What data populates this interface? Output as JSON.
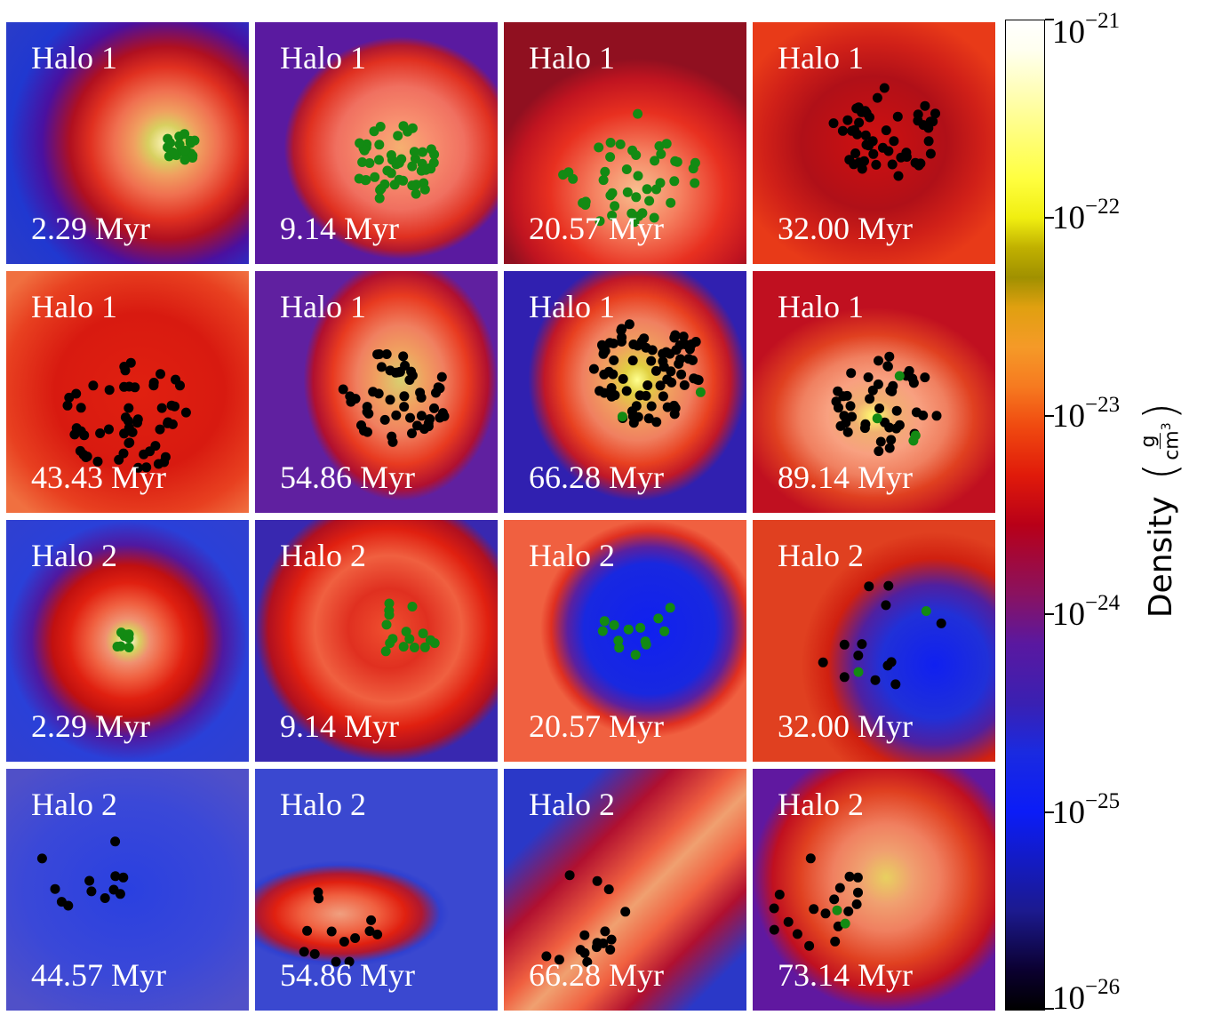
{
  "panels": [
    {
      "halo": "Halo 1",
      "time": "2.29 Myr",
      "bg": "radial-gradient(circle at 66% 50%,#fff7c0 0%,#d8d060 9%,#f0a060 16%,#f07050 26%,#e03020 38%,#b01020 48%,#4a10a0 62%,#2038d0 78%,#2a3cc8 100%)",
      "green": 20,
      "black": 0
    },
    {
      "halo": "Halo 1",
      "time": "9.14 Myr",
      "bg": "radial-gradient(ellipse 48% 46% at 60% 52%,#f5b070 0%,#f89070 25%,#f07060 55%,#e03020 80%,#b01830 92%,#5a1aa0 100%)",
      "green": 50,
      "black": 0
    },
    {
      "halo": "Halo 1",
      "time": "20.57 Myr",
      "bg": "radial-gradient(ellipse 60% 55% at 55% 70%,#f8c090 0%,#f58060 30%,#e83020 60%,#c01420 85%,#901020 100%)",
      "green": 44,
      "black": 0
    },
    {
      "halo": "Halo 1",
      "time": "32.00 Myr",
      "bg": "radial-gradient(ellipse 60% 55% at 50% 50%,#d01010 0%,#b01018 50%,#d02018 75%,#e83a18 100%)",
      "green": 0,
      "black": 50
    },
    {
      "halo": "Halo 1",
      "time": "43.43 Myr",
      "bg": "radial-gradient(ellipse 70% 65% at 55% 50%,#e02010 0%,#d81a10 50%,#e84020 80%,#f07040 100%)",
      "green": 0,
      "black": 56
    },
    {
      "halo": "Halo 1",
      "time": "54.86 Myr",
      "bg": "radial-gradient(ellipse 40% 50% at 60% 45%,#d8d070 0%,#f0a060 25%,#f08060 45%,#e83a20 70%,#b01030 90%,#6020a0 100%)",
      "green": 0,
      "black": 50
    },
    {
      "halo": "Halo 1",
      "time": "66.28 Myr",
      "bg": "radial-gradient(ellipse 45% 50% at 55% 45%,#ffff90 0%,#e0d040 12%,#f0a060 30%,#f08060 50%,#e84020 70%,#c01828 85%,#3020b0 100%)",
      "green": 2,
      "black": 80
    },
    {
      "halo": "Halo 1",
      "time": "89.14 Myr",
      "bg": "radial-gradient(ellipse 55% 45% at 50% 60%,#ffff70 0%,#f0b070 15%,#f8a080 35%,#f08060 55%,#e04020 75%,#c01020 100%)",
      "green": 4,
      "black": 44
    },
    {
      "halo": "Halo 2",
      "time": "2.29 Myr",
      "bg": "radial-gradient(circle at 50% 50%,#fffff0 0%,#d8d060 7%,#f09070 13%,#f06040 22%,#e02010 34%,#c01010 44%,#5018a0 56%,#2a40d8 70%,#3040d0 100%)",
      "green": 8,
      "black": 0
    },
    {
      "halo": "Halo 2",
      "time": "9.14 Myr",
      "bg": "radial-gradient(ellipse 55% 55% at 55% 45%,#f05030 0%,#e03020 30%,#f06040 55%,#e02010 75%,#b01020 90%,#3828b0 100%)",
      "green": 16,
      "black": 0
    },
    {
      "halo": "Halo 2",
      "time": "20.57 Myr",
      "bg": "radial-gradient(ellipse 45% 45% at 60% 45%,#1020f0 0%,#1828e0 60%,#5a20a0 75%,#e03020 90%,#f06040 100%)",
      "green": 13,
      "black": 0
    },
    {
      "halo": "Halo 2",
      "time": "32.00 Myr",
      "bg": "radial-gradient(ellipse 55% 55% at 75% 60%,#1020f0 0%,#2030d8 40%,#5020a0 60%,#d02010 80%,#e04020 100%)",
      "green": 2,
      "black": 13
    },
    {
      "halo": "Halo 2",
      "time": "44.57 Myr",
      "bg": "radial-gradient(ellipse 70% 60% at 50% 50%,#2a40e0 0%,#3a48d8 60%,#5050c8 100%)",
      "green": 0,
      "black": 12
    },
    {
      "halo": "Halo 2",
      "time": "54.86 Myr",
      "bg": "radial-gradient(ellipse 45% 22% at 35% 60%,#f0a080 0%,#f06040 35%,#e02010 60%,#b01830 75%,#3040d0 92%,#3a48d0 100%)",
      "green": 0,
      "black": 13
    },
    {
      "halo": "Halo 2",
      "time": "66.28 Myr",
      "bg": "linear-gradient(135deg,#2a38c8 0%,#2a38c8 20%,#b01030 35%,#f06040 48%,#f0a070 55%,#f06040 65%,#b01030 75%,#2a38c8 88%)",
      "green": 0,
      "black": 16
    },
    {
      "halo": "Halo 2",
      "time": "73.14 Myr",
      "bg": "radial-gradient(ellipse 55% 55% at 55% 45%,#e8d060 0%,#f0a070 20%,#f08060 40%,#e04020 65%,#c01020 85%,#6018a0 100%)",
      "green": 2,
      "black": 18
    }
  ],
  "colorbar": {
    "label": "Density",
    "unit_num": "g",
    "unit_den": "cm",
    "unit_den_exp": "3",
    "ticks": [
      {
        "base": "10",
        "exp": "−21"
      },
      {
        "base": "10",
        "exp": "−22"
      },
      {
        "base": "10",
        "exp": "−23"
      },
      {
        "base": "10",
        "exp": "−24"
      },
      {
        "base": "10",
        "exp": "−25"
      },
      {
        "base": "10",
        "exp": "−26"
      }
    ]
  }
}
